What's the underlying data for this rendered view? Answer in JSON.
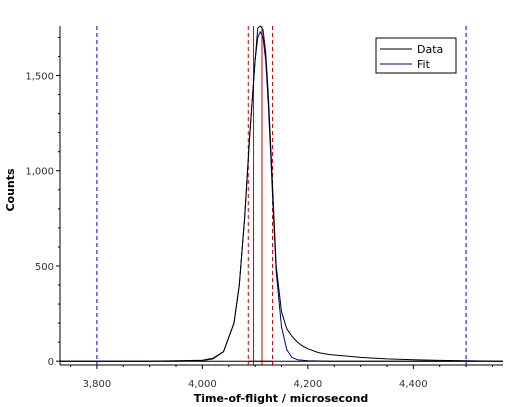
{
  "chart_data": {
    "type": "line",
    "xlabel": "Time-of-flight / microsecond",
    "ylabel": "Counts",
    "xlim": [
      3730,
      4570
    ],
    "ylim": [
      -20,
      1760
    ],
    "x_ticks": [
      3800,
      4000,
      4200,
      4400
    ],
    "x_tick_labels": [
      "3,800",
      "4,000",
      "4,200",
      "4,400"
    ],
    "y_ticks": [
      0,
      500,
      1000,
      1500
    ],
    "y_tick_labels": [
      "0",
      "500",
      "1,000",
      "1,500"
    ],
    "grid": false,
    "legend_position": "top-right",
    "series": [
      {
        "name": "Data",
        "color": "#000000",
        "x": [
          3730,
          3800,
          3900,
          3950,
          4000,
          4020,
          4040,
          4060,
          4070,
          4080,
          4090,
          4100,
          4105,
          4110,
          4115,
          4120,
          4125,
          4130,
          4135,
          4140,
          4150,
          4160,
          4170,
          4180,
          4190,
          4200,
          4220,
          4240,
          4260,
          4280,
          4300,
          4350,
          4400,
          4450,
          4500,
          4570
        ],
        "y": [
          0,
          0,
          0,
          2,
          5,
          15,
          50,
          200,
          400,
          750,
          1200,
          1580,
          1750,
          1760,
          1740,
          1620,
          1400,
          1100,
          800,
          500,
          260,
          170,
          130,
          100,
          80,
          65,
          45,
          35,
          30,
          25,
          20,
          12,
          8,
          4,
          2,
          0
        ]
      },
      {
        "name": "Fit",
        "color": "#000080",
        "x": [
          3730,
          3800,
          3950,
          4000,
          4020,
          4040,
          4060,
          4070,
          4080,
          4090,
          4100,
          4105,
          4110,
          4115,
          4120,
          4125,
          4130,
          4135,
          4140,
          4150,
          4160,
          4170,
          4180,
          4200,
          4250,
          4300,
          4400,
          4500,
          4570
        ],
        "y": [
          0,
          0,
          0,
          3,
          12,
          50,
          200,
          400,
          750,
          1200,
          1580,
          1700,
          1730,
          1700,
          1580,
          1350,
          1050,
          750,
          470,
          180,
          60,
          20,
          8,
          2,
          0,
          0,
          0,
          0,
          0
        ]
      }
    ],
    "vertical_markers": [
      {
        "x": 3800,
        "color": "#0000cc",
        "style": "dashed"
      },
      {
        "x": 4500,
        "color": "#0000cc",
        "style": "dashed"
      },
      {
        "x": 4087,
        "color": "#cc0000",
        "style": "dashed"
      },
      {
        "x": 4133,
        "color": "#cc0000",
        "style": "dashed"
      },
      {
        "x": 4097,
        "color": "#cc0000",
        "style": "solid"
      },
      {
        "x": 4113,
        "color": "#cc0000",
        "style": "solid"
      }
    ],
    "baseline_segment": {
      "x_start": 4087,
      "x_end": 4133,
      "y": 0,
      "color": "#cc0000"
    }
  }
}
